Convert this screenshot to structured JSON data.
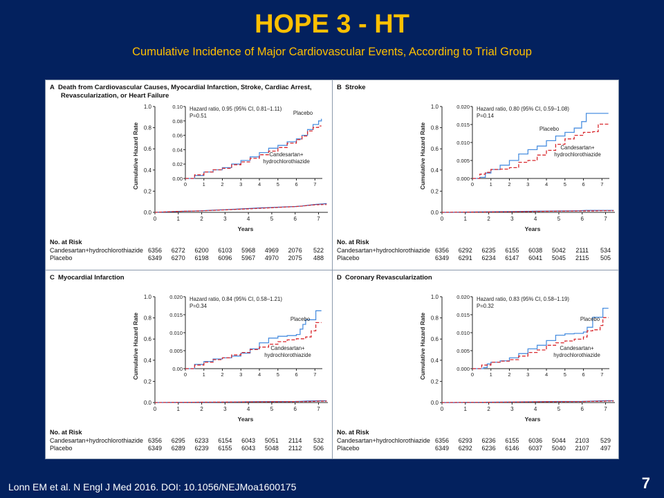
{
  "slide": {
    "title": "HOPE 3 - HT",
    "subtitle": "Cumulative  Incidence  of Major  Cardiovascular  Events, According  to Trial Group",
    "citation": "Lonn EM et al. N Engl J Med 2016. DOI:  10.1056/NEJMoa1600175",
    "page_number": "7",
    "colors": {
      "background": "#03215e",
      "title": "#ffc000",
      "placebo": "#4a8fe0",
      "candesartan": "#d8262b"
    }
  },
  "chart_data": [
    {
      "type": "line",
      "panel": "A",
      "title_line1": "Death from Cardiovascular Causes, Myocardial Infarction, Stroke, Cardiac Arrest,",
      "title_line2": "Revascularization, or Heart Failure",
      "xlabel": "Years",
      "ylabel": "Cumulative Hazard Rate",
      "outer_ylim": [
        0,
        1.0
      ],
      "outer_yticks": [
        "0.0",
        "0.2",
        "0.4",
        "0.6",
        "0.8",
        "1.0"
      ],
      "xticks": [
        "0",
        "1",
        "2",
        "3",
        "4",
        "5",
        "6",
        "7"
      ],
      "xlim": [
        0,
        7.4
      ],
      "inset_ylim": [
        0,
        0.1
      ],
      "inset_yticks": [
        "0.00",
        "0.02",
        "0.04",
        "0.06",
        "0.08",
        "0.10"
      ],
      "annotation_hr": "Hazard ratio, 0.95 (95% CI, 0.81–1.11)",
      "annotation_p": "P=0.51",
      "label_placebo": "Placebo",
      "label_cand_1": "Candesartan+",
      "label_cand_2": "hydrochlorothiazide",
      "series": [
        {
          "name": "Placebo",
          "style": "solid",
          "x": [
            0,
            0.5,
            1,
            1.5,
            2,
            2.5,
            3,
            3.5,
            4,
            4.5,
            5,
            5.5,
            6,
            6.3,
            6.6,
            6.9,
            7.2,
            7.35
          ],
          "y": [
            0,
            0.004,
            0.009,
            0.012,
            0.015,
            0.02,
            0.025,
            0.03,
            0.036,
            0.042,
            0.046,
            0.051,
            0.055,
            0.06,
            0.068,
            0.075,
            0.08,
            0.083
          ]
        },
        {
          "name": "Candesartan+hydrochlorothiazide",
          "style": "dashed",
          "x": [
            0,
            0.5,
            1,
            1.5,
            2,
            2.5,
            3,
            3.5,
            4,
            4.5,
            5,
            5.5,
            6,
            6.3,
            6.6,
            6.9,
            7.2,
            7.35
          ],
          "y": [
            0,
            0.005,
            0.009,
            0.012,
            0.014,
            0.019,
            0.023,
            0.028,
            0.033,
            0.038,
            0.043,
            0.049,
            0.054,
            0.059,
            0.066,
            0.071,
            0.073,
            0.073
          ]
        }
      ],
      "risk_header": "No. at Risk",
      "risk_table": [
        {
          "label": "Candesartan+hydrochlorothiazide",
          "values": [
            "6356",
            "6272",
            "6200",
            "6103",
            "5968",
            "4969",
            "2076",
            "522"
          ]
        },
        {
          "label": "Placebo",
          "values": [
            "6349",
            "6270",
            "6198",
            "6096",
            "5967",
            "4970",
            "2075",
            "488"
          ]
        }
      ]
    },
    {
      "type": "line",
      "panel": "B",
      "title_line1": "Stroke",
      "title_line2": "",
      "xlabel": "Years",
      "ylabel": "Cumulative Hazard Rate",
      "outer_ylim": [
        0,
        1.0
      ],
      "outer_yticks": [
        "0.0",
        "0.2",
        "0.4",
        "0.6",
        "0.8",
        "1.0"
      ],
      "xticks": [
        "0",
        "1",
        "2",
        "3",
        "4",
        "5",
        "6",
        "7"
      ],
      "xlim": [
        0,
        7.4
      ],
      "inset_ylim": [
        0,
        0.02
      ],
      "inset_yticks": [
        "0.000",
        "0.005",
        "0.010",
        "0.015",
        "0.020"
      ],
      "annotation_hr": "Hazard ratio, 0.80 (95% CI, 0.59–1.08)",
      "annotation_p": "P=0.14",
      "label_placebo": "Placebo",
      "label_cand_1": "Candesartan+",
      "label_cand_2": "hydrochlorothiazide",
      "series": [
        {
          "name": "Placebo",
          "style": "solid",
          "x": [
            0,
            0.4,
            0.7,
            1,
            1.5,
            2,
            2.5,
            3,
            3.5,
            4,
            4.5,
            5,
            5.5,
            5.9,
            6.15,
            7.35
          ],
          "y": [
            0,
            0.0003,
            0.0015,
            0.0025,
            0.0037,
            0.005,
            0.0068,
            0.008,
            0.009,
            0.0105,
            0.0118,
            0.0128,
            0.014,
            0.0158,
            0.0181,
            0.0181
          ]
        },
        {
          "name": "Candesartan+hydrochlorothiazide",
          "style": "dashed",
          "x": [
            0,
            0.4,
            0.7,
            1,
            1.5,
            2,
            2.5,
            3,
            3.5,
            4,
            4.5,
            5,
            5.5,
            6,
            6.5,
            6.8,
            7.35
          ],
          "y": [
            0,
            0.0012,
            0.0017,
            0.0025,
            0.0026,
            0.003,
            0.0045,
            0.005,
            0.0065,
            0.0078,
            0.0095,
            0.011,
            0.012,
            0.0128,
            0.013,
            0.0151,
            0.0151
          ]
        }
      ],
      "risk_header": "No. at Risk",
      "risk_table": [
        {
          "label": "Candesartan+hydrochlorothiazide",
          "values": [
            "6356",
            "6292",
            "6235",
            "6155",
            "6038",
            "5042",
            "2111",
            "534"
          ]
        },
        {
          "label": "Placebo",
          "values": [
            "6349",
            "6291",
            "6234",
            "6147",
            "6041",
            "5045",
            "2115",
            "505"
          ]
        }
      ]
    },
    {
      "type": "line",
      "panel": "C",
      "title_line1": "Myocardial Infarction",
      "title_line2": "",
      "xlabel": "Years",
      "ylabel": "Cumulative Hazard Rate",
      "outer_ylim": [
        0,
        1.0
      ],
      "outer_yticks": [
        "0.0",
        "0.2",
        "0.4",
        "0.6",
        "0.8",
        "1.0"
      ],
      "xticks": [
        "0",
        "1",
        "2",
        "3",
        "4",
        "5",
        "6",
        "7"
      ],
      "xlim": [
        0,
        7.4
      ],
      "inset_ylim": [
        0,
        0.02
      ],
      "inset_yticks": [
        "0.00",
        "0.005",
        "0.010",
        "0.015",
        "0.020"
      ],
      "annotation_hr": "Hazard ratio, 0.84 (95% CI, 0.58–1.21)",
      "annotation_p": "P=0.34",
      "label_placebo": "Placebo",
      "label_cand_1": "Candesartan+",
      "label_cand_2": "hydrochlorothiazide",
      "series": [
        {
          "name": "Placebo",
          "style": "solid",
          "x": [
            0,
            0.5,
            1,
            1.5,
            2,
            2.5,
            3,
            3.5,
            4,
            4.5,
            5,
            5.5,
            6,
            6.2,
            6.35,
            6.5,
            7.05,
            7.35
          ],
          "y": [
            0,
            0.0012,
            0.002,
            0.0027,
            0.003,
            0.0035,
            0.0043,
            0.0055,
            0.0072,
            0.0085,
            0.009,
            0.0092,
            0.0095,
            0.011,
            0.0123,
            0.0136,
            0.0161,
            0.0161
          ]
        },
        {
          "name": "Candesartan+hydrochlorothiazide",
          "style": "dashed",
          "x": [
            0,
            0.5,
            1,
            1.5,
            2,
            2.5,
            3,
            3.5,
            4,
            4.5,
            5,
            5.5,
            6,
            6.5,
            6.8,
            7.05,
            7.35
          ],
          "y": [
            0,
            0.001,
            0.0018,
            0.0025,
            0.003,
            0.0038,
            0.0045,
            0.0053,
            0.006,
            0.0068,
            0.0075,
            0.008,
            0.0083,
            0.0088,
            0.0105,
            0.0128,
            0.0128
          ]
        }
      ],
      "risk_header": "No. at Risk",
      "risk_table": [
        {
          "label": "Candesartan+hydrochlorothiazide",
          "values": [
            "6356",
            "6295",
            "6233",
            "6154",
            "6043",
            "5051",
            "2114",
            "532"
          ]
        },
        {
          "label": "Placebo",
          "values": [
            "6349",
            "6289",
            "6239",
            "6155",
            "6043",
            "5048",
            "2112",
            "506"
          ]
        }
      ]
    },
    {
      "type": "line",
      "panel": "D",
      "title_line1": "Coronary Revascularization",
      "title_line2": "",
      "xlabel": "Years",
      "ylabel": "Cumulative Hazard Rate",
      "outer_ylim": [
        0,
        1.0
      ],
      "outer_yticks": [
        "0.0",
        "0.2",
        "0.4",
        "0.6",
        "0.8",
        "1.0"
      ],
      "xticks": [
        "0",
        "1",
        "2",
        "3",
        "4",
        "5",
        "6",
        "7"
      ],
      "xlim": [
        0,
        7.4
      ],
      "inset_ylim": [
        0,
        0.02
      ],
      "inset_yticks": [
        "0.000",
        "0.005",
        "0.010",
        "0.015",
        "0.020"
      ],
      "annotation_hr": "Hazard ratio, 0.83 (95% CI, 0.58–1.19)",
      "annotation_p": "P=0.32",
      "label_placebo": "Placebo",
      "label_cand_1": "Candesartan+",
      "label_cand_2": "hydrochlorothiazide",
      "series": [
        {
          "name": "Placebo",
          "style": "solid",
          "x": [
            0,
            0.6,
            0.8,
            1,
            1.5,
            2,
            2.5,
            3,
            3.5,
            4,
            4.5,
            5,
            5.5,
            6,
            6.2,
            6.5,
            7.05,
            7.35
          ],
          "y": [
            0,
            0.0003,
            0.0013,
            0.0018,
            0.0022,
            0.003,
            0.0042,
            0.0055,
            0.0065,
            0.0078,
            0.0093,
            0.0097,
            0.0098,
            0.0102,
            0.0115,
            0.0143,
            0.0168,
            0.0168
          ]
        },
        {
          "name": "Candesartan+hydrochlorothiazide",
          "style": "dashed",
          "x": [
            0,
            0.5,
            1,
            1.5,
            2,
            2.5,
            3,
            3.5,
            4,
            4.5,
            5,
            5.5,
            6,
            6.2,
            6.5,
            6.9,
            7.05,
            7.35
          ],
          "y": [
            0,
            0.001,
            0.0018,
            0.0021,
            0.0025,
            0.0035,
            0.0045,
            0.0052,
            0.0065,
            0.0072,
            0.0077,
            0.0082,
            0.0088,
            0.0105,
            0.0108,
            0.012,
            0.0142,
            0.0142
          ]
        }
      ],
      "risk_header": "No. at Risk",
      "risk_table": [
        {
          "label": "Candesartan+hydrochlorothiazide",
          "values": [
            "6356",
            "6293",
            "6236",
            "6155",
            "6036",
            "5044",
            "2103",
            "529"
          ]
        },
        {
          "label": "Placebo",
          "values": [
            "6349",
            "6292",
            "6236",
            "6146",
            "6037",
            "5040",
            "2107",
            "497"
          ]
        }
      ]
    }
  ]
}
